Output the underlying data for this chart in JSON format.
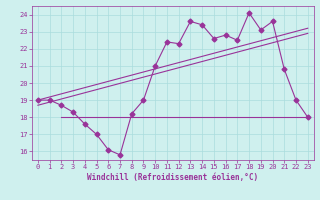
{
  "background_color": "#cff0ee",
  "grid_color": "#aadddd",
  "line_color": "#993399",
  "xlim": [
    -0.5,
    23.5
  ],
  "ylim": [
    15.5,
    24.5
  ],
  "yticks": [
    16,
    17,
    18,
    19,
    20,
    21,
    22,
    23,
    24
  ],
  "xticks": [
    0,
    1,
    2,
    3,
    4,
    5,
    6,
    7,
    8,
    9,
    10,
    11,
    12,
    13,
    14,
    15,
    16,
    17,
    18,
    19,
    20,
    21,
    22,
    23
  ],
  "xlabel": "Windchill (Refroidissement éolien,°C)",
  "series1_x": [
    0,
    1,
    2,
    3,
    4,
    5,
    6,
    7,
    8,
    9,
    10,
    11,
    12,
    13,
    14,
    15,
    16,
    17,
    18,
    19,
    20,
    21,
    22,
    23
  ],
  "series1_y": [
    19,
    19,
    18.7,
    18.3,
    17.6,
    17.0,
    16.1,
    15.8,
    18.2,
    19.0,
    21.0,
    22.4,
    22.3,
    23.6,
    23.4,
    22.6,
    22.8,
    22.5,
    24.1,
    23.1,
    23.6,
    20.8,
    19.0,
    18.0
  ],
  "trend1_x": [
    0,
    23
  ],
  "trend1_y": [
    19.0,
    23.2
  ],
  "trend2_x": [
    0,
    23
  ],
  "trend2_y": [
    18.7,
    22.9
  ],
  "hline_x": [
    2,
    23
  ],
  "hline_y": [
    18.0,
    18.0
  ],
  "marker": "D",
  "markersize": 2.5,
  "linewidth": 0.8,
  "tick_fontsize": 5.0,
  "xlabel_fontsize": 5.5
}
